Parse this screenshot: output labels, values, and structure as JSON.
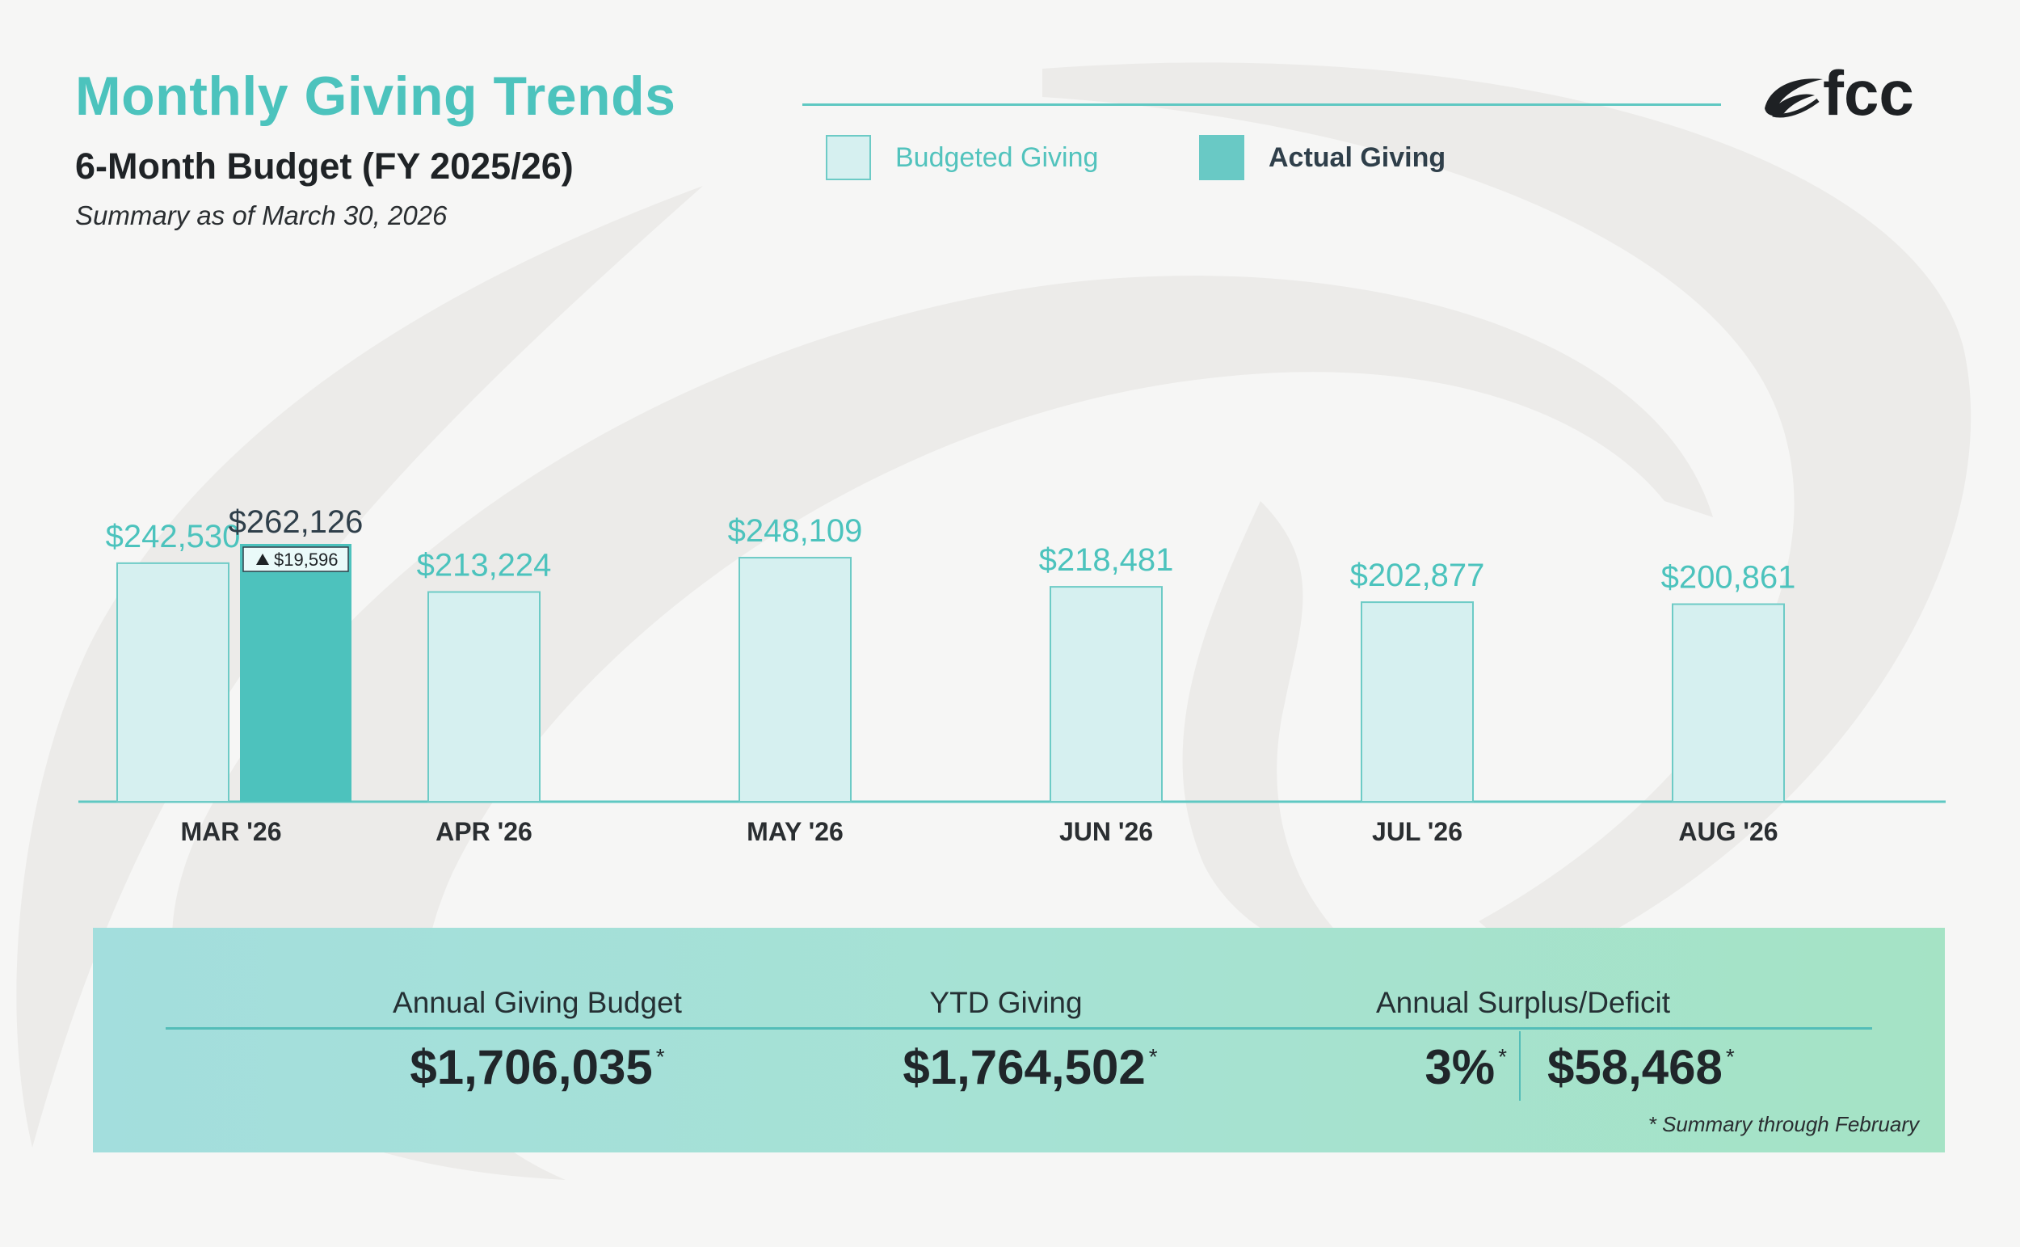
{
  "header": {
    "title": "Monthly Giving Trends",
    "subtitle": "6-Month Budget (FY 2025/26)",
    "as_of": "Summary as of March 30, 2026"
  },
  "legend": {
    "budget_label": "Budgeted Giving",
    "actual_label": "Actual Giving"
  },
  "logo": {
    "text": "fcc"
  },
  "colors": {
    "brand_teal": "#4cc3bd",
    "budget_fill": "#d6f0f0",
    "budget_stroke": "#6dcbc6",
    "actual_fill": "#4dc2bd",
    "value_label_budget": "#4cc3bd",
    "value_label_actual": "#2f3f4a",
    "axis": "#5fc8c2"
  },
  "chart_data": {
    "type": "bar",
    "categories": [
      "MAR '26",
      "APR '26",
      "MAY '26",
      "JUN '26",
      "JUL '26",
      "AUG '26"
    ],
    "series": [
      {
        "name": "Budgeted Giving",
        "values": [
          242530,
          213224,
          248109,
          218481,
          202877,
          200861
        ]
      },
      {
        "name": "Actual Giving",
        "values": [
          262126,
          null,
          null,
          null,
          null,
          null
        ]
      }
    ],
    "value_labels": {
      "budget": [
        "$242,530",
        "$213,224",
        "$248,109",
        "$218,481",
        "$202,877",
        "$200,861"
      ],
      "actual": [
        "$262,126",
        null,
        null,
        null,
        null,
        null
      ]
    },
    "annotations": [
      {
        "category": "MAR '26",
        "text": "$19,596",
        "direction": "up"
      }
    ],
    "ylim": [
      0,
      262126
    ],
    "grid": false,
    "legend_position": "top-right"
  },
  "summary": {
    "budget_label": "Annual Giving Budget",
    "budget_value": "$1,706,035",
    "ytd_label": "YTD Giving",
    "ytd_value": "$1,764,502",
    "surplus_label": "Annual Surplus/Deficit",
    "surplus_percent": "3%",
    "surplus_value": "$58,468",
    "asterisk": "*",
    "footnote": "*  Summary through February"
  }
}
